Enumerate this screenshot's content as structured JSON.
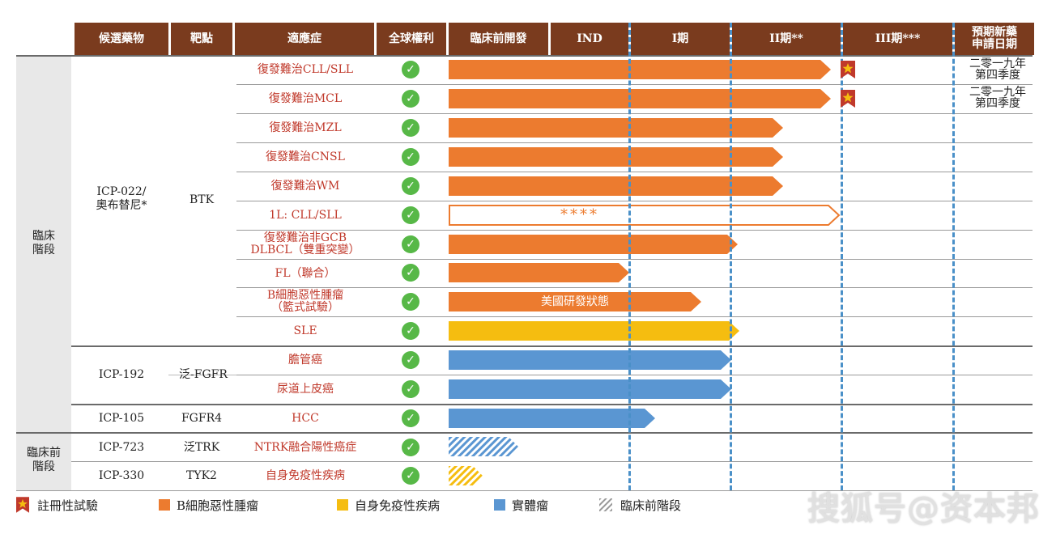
{
  "headers": {
    "candidate": "候選藥物",
    "target": "靶點",
    "indication": "適應症",
    "rights": "全球權利",
    "preclinical": "臨床前開發",
    "ind": "IND",
    "phase1": "I期",
    "phase2": "II期**",
    "phase3": "III期***",
    "nda_line1": "預期新藥",
    "nda_line2": "申請日期"
  },
  "stages": {
    "clinical_line1": "臨床",
    "clinical_line2": "階段",
    "preclinical_line1": "臨床前",
    "preclinical_line2": "階段"
  },
  "drugs": {
    "icp022_line1": "ICP-022/",
    "icp022_line2": "奧布替尼*",
    "icp022_target": "BTK",
    "icp192": "ICP-192",
    "icp192_target": "泛-FGFR",
    "icp105": "ICP-105",
    "icp105_target": "FGFR4",
    "icp723": "ICP-723",
    "icp723_target": "泛TRK",
    "icp330": "ICP-330",
    "icp330_target": "TYK2"
  },
  "indications": {
    "r1": "復發難治CLL/SLL",
    "r2": "復發難治MCL",
    "r3": "復發難治MZL",
    "r4": "復發難治CNSL",
    "r5": "復發難治WM",
    "r6": "1L: CLL/SLL",
    "r7_line1": "復發難治非GCB",
    "r7_line2": "DLBCL（雙重突變）",
    "r8": "FL（聯合）",
    "r9_line1": "B細胞惡性腫瘤",
    "r9_line2": "（籃式試驗）",
    "r10": "SLE",
    "r11": "膽管癌",
    "r12": "尿道上皮癌",
    "r13": "HCC",
    "r14": "NTRK融合陽性癌症",
    "r15": "自身免疫性疾病"
  },
  "rights_symbol": "✓",
  "bar_labels": {
    "r6": "****",
    "r9": "美國研發狀態"
  },
  "nda_dates": {
    "r1_line1": "二零一九年",
    "r1_line2": "第四季度",
    "r2_line1": "二零一九年",
    "r2_line2": "第四季度"
  },
  "legend": {
    "registrational": "註冊性試驗",
    "b_cell": "B細胞惡性腫瘤",
    "autoimmune": "自身免疫性疾病",
    "solid_tumor": "實體瘤",
    "preclinical": "臨床前階段"
  },
  "colors": {
    "header": "#7a3b1e",
    "b_cell": "#ec7b2f",
    "autoimmune": "#f5bd10",
    "solid_tumor": "#5a96d2",
    "check": "#57b847",
    "dashed": "#4a90c8"
  },
  "icons": {
    "check": "check-circle-icon",
    "registrational": "star-ribbon-icon"
  },
  "watermark": "搜狐号@资本邦"
}
